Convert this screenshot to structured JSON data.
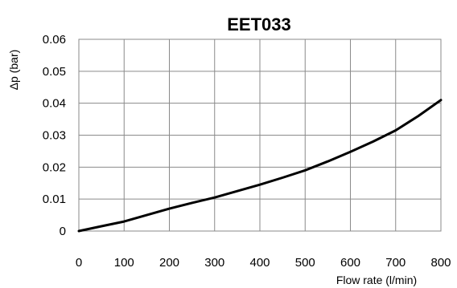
{
  "chart_data": {
    "type": "line",
    "title": "EET033",
    "xlabel": "Flow rate (l/min)",
    "ylabel": "Δp (bar)",
    "xlim": [
      0,
      800
    ],
    "ylim": [
      0,
      0.06
    ],
    "x_ticks": [
      0,
      100,
      200,
      300,
      400,
      500,
      600,
      700,
      800
    ],
    "x_tick_labels": [
      "0",
      "100",
      "200",
      "300",
      "400",
      "500",
      "600",
      "700",
      "800"
    ],
    "y_ticks": [
      0,
      0.01,
      0.02,
      0.03,
      0.04,
      0.05,
      0.06
    ],
    "y_tick_labels": [
      "0",
      "0.01",
      "0.02",
      "0.03",
      "0.04",
      "0.05",
      "0.06"
    ],
    "grid": true,
    "legend": false,
    "series": [
      {
        "color": "#000000",
        "x": [
          0,
          50,
          100,
          150,
          200,
          250,
          300,
          350,
          400,
          450,
          500,
          550,
          600,
          650,
          700,
          750,
          800
        ],
        "y": [
          0,
          0.0015,
          0.003,
          0.005,
          0.007,
          0.0088,
          0.0105,
          0.0125,
          0.0145,
          0.0167,
          0.019,
          0.0218,
          0.0248,
          0.028,
          0.0315,
          0.036,
          0.041
        ]
      }
    ]
  }
}
